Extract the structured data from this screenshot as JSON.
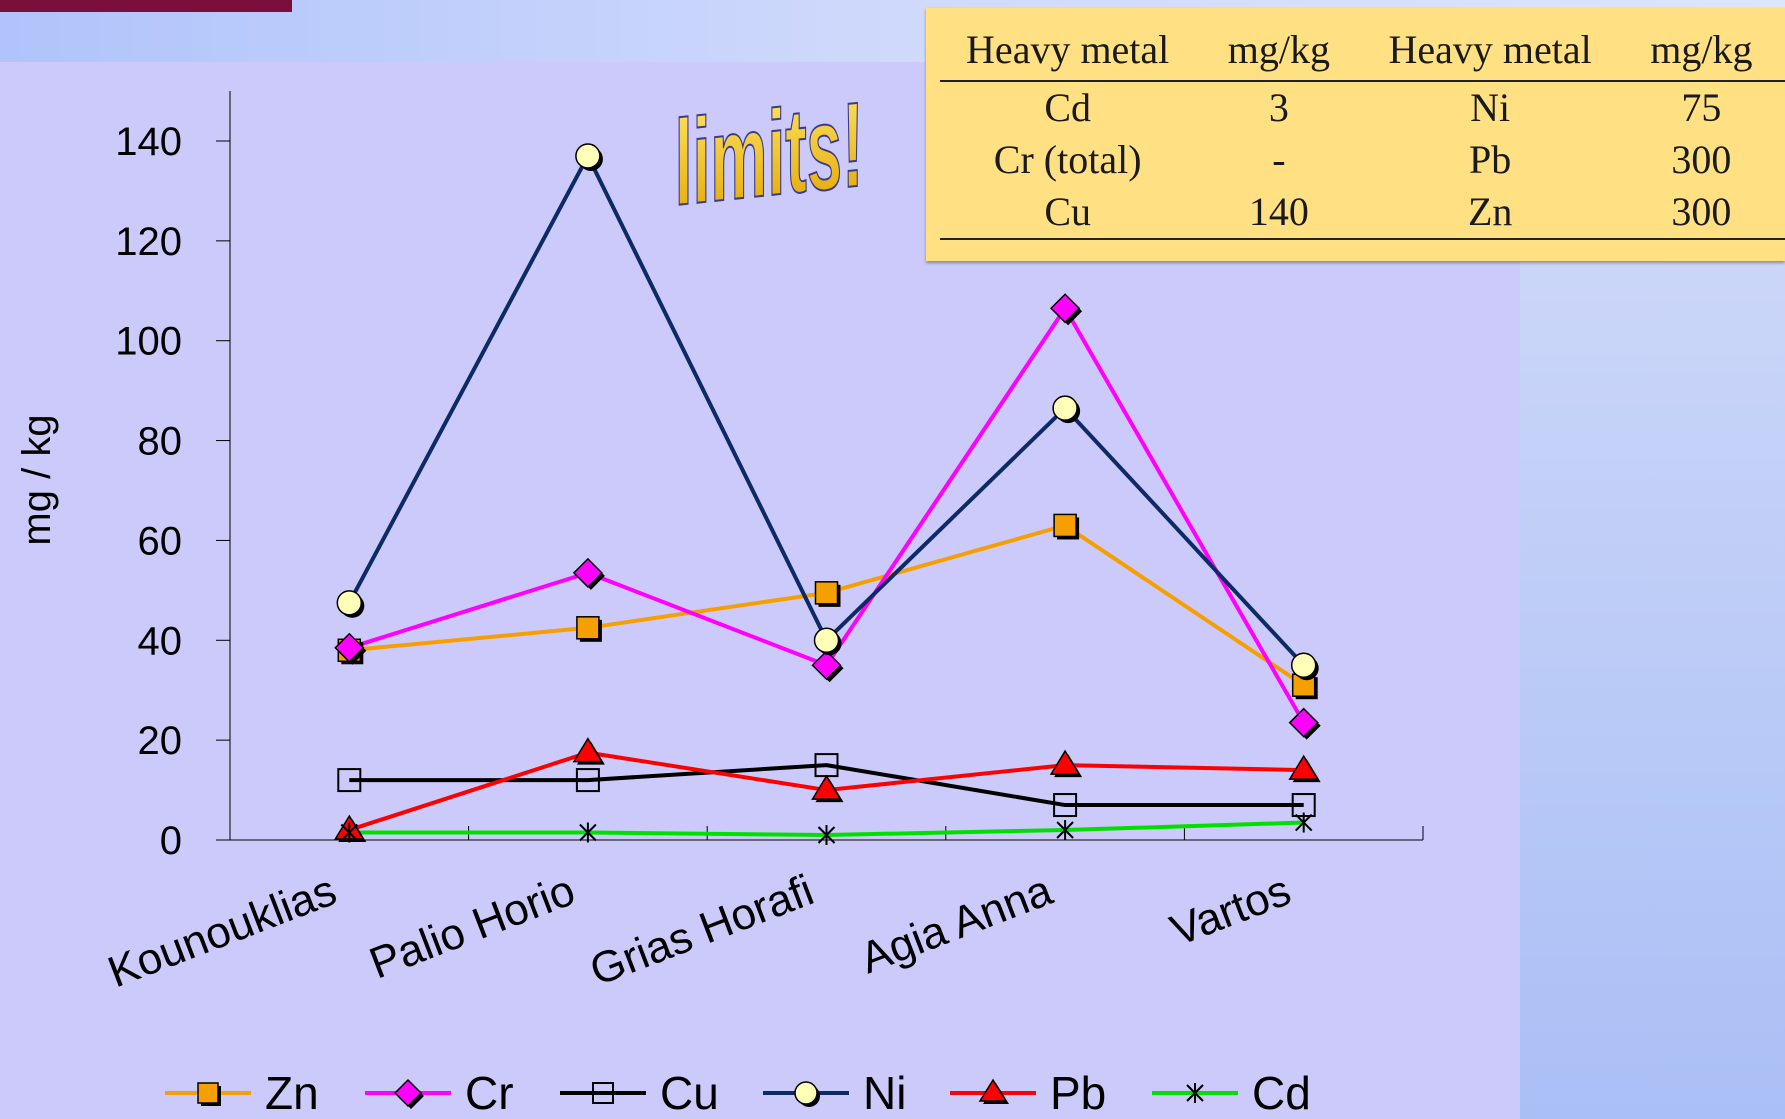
{
  "wordart": "limits!",
  "limits_table": {
    "headers": [
      "Heavy metal",
      "mg/kg",
      "Heavy metal",
      "mg/kg"
    ],
    "rows": [
      [
        "Cd",
        "3",
        "Ni",
        "75"
      ],
      [
        "Cr (total)",
        "-",
        "Pb",
        "300"
      ],
      [
        "Cu",
        "140",
        "Zn",
        "300"
      ]
    ]
  },
  "chart_data": {
    "type": "line",
    "title": "",
    "xlabel": "",
    "ylabel": "mg / kg",
    "ylim": [
      0,
      140
    ],
    "yticks": [
      0,
      20,
      40,
      60,
      80,
      100,
      120,
      140
    ],
    "grid": false,
    "legend_position": "bottom",
    "categories": [
      "Kounouklias",
      "Palio Horio",
      "Grias Horafi",
      "Agia Anna",
      "Vartos"
    ],
    "series": [
      {
        "name": "Zn",
        "color": "#f5a000",
        "marker": "square-filled",
        "values": [
          38,
          42.5,
          49.5,
          63,
          31
        ]
      },
      {
        "name": "Cr",
        "color": "#ff00ff",
        "marker": "diamond",
        "values": [
          38.5,
          53.5,
          35,
          106.5,
          23.5
        ]
      },
      {
        "name": "Cu",
        "color": "#000000",
        "marker": "square-open",
        "values": [
          12,
          12,
          15,
          7,
          7
        ]
      },
      {
        "name": "Ni",
        "color": "#0b2a66",
        "marker": "circle",
        "values": [
          47.5,
          137,
          40,
          86.5,
          35
        ]
      },
      {
        "name": "Pb",
        "color": "#ff0000",
        "marker": "triangle",
        "values": [
          2,
          17.5,
          10,
          15,
          14
        ]
      },
      {
        "name": "Cd",
        "color": "#00e000",
        "marker": "star",
        "values": [
          1.5,
          1.5,
          1,
          2,
          3.5
        ]
      }
    ]
  }
}
